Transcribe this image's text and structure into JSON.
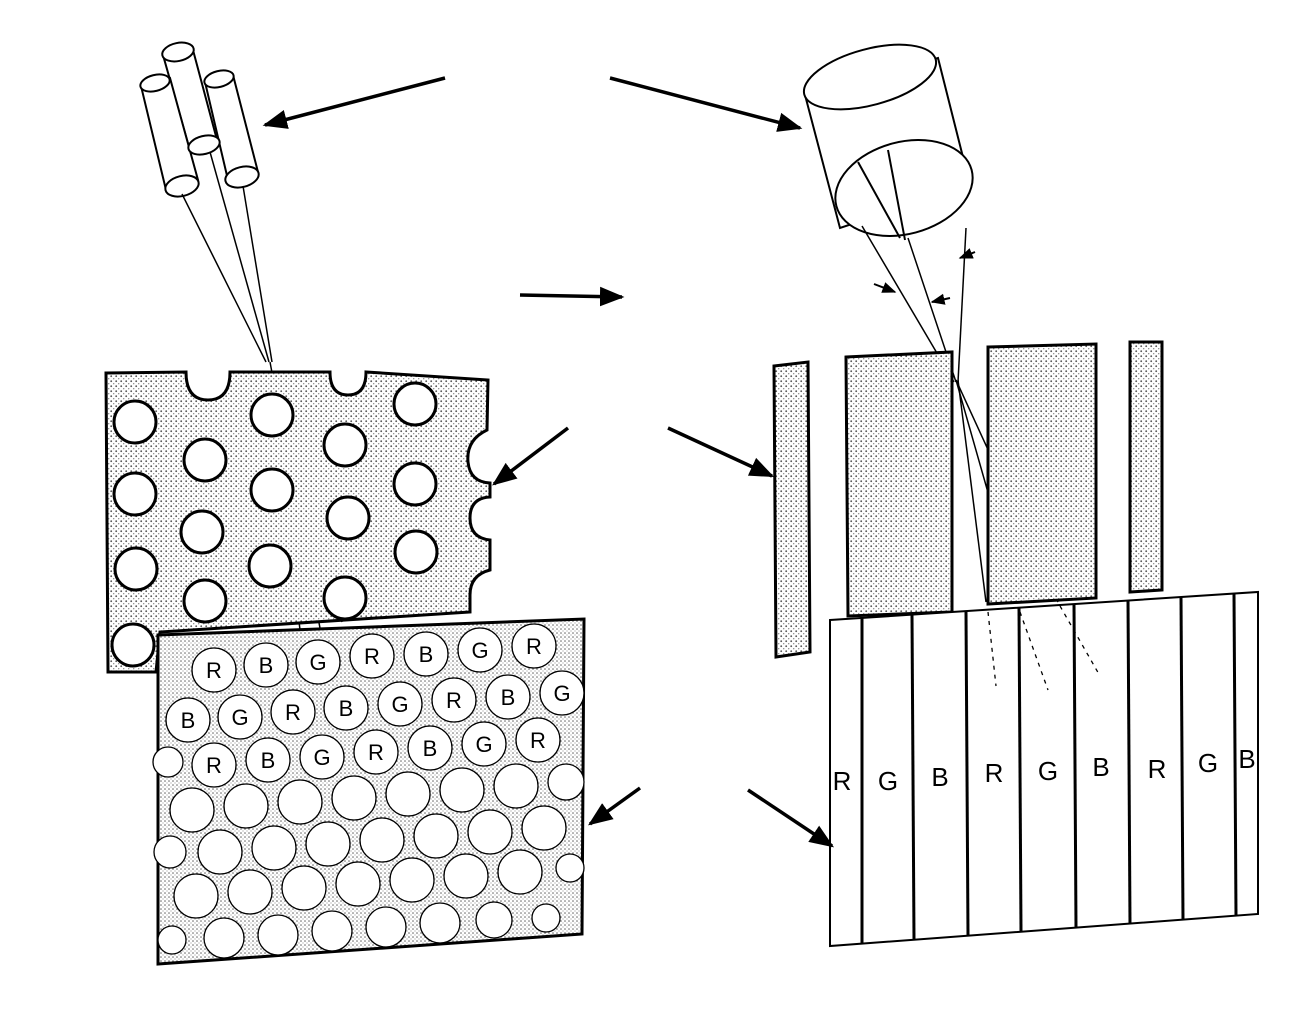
{
  "delta_triad": {
    "row_labels": [
      [
        "R",
        "B",
        "G",
        "R",
        "B",
        "G",
        "R"
      ],
      [
        "B",
        "G",
        "R",
        "B",
        "G",
        "R",
        "B",
        "G"
      ],
      [
        "R",
        "B",
        "G",
        "R",
        "B",
        "G",
        "R"
      ]
    ]
  },
  "in_line": {
    "stripe_labels": [
      "R",
      "G",
      "B",
      "R",
      "G",
      "B",
      "R",
      "G",
      "B"
    ]
  },
  "colors": {
    "ink": "#000000",
    "paper": "#ffffff",
    "stipple": "#d0d0d0"
  }
}
